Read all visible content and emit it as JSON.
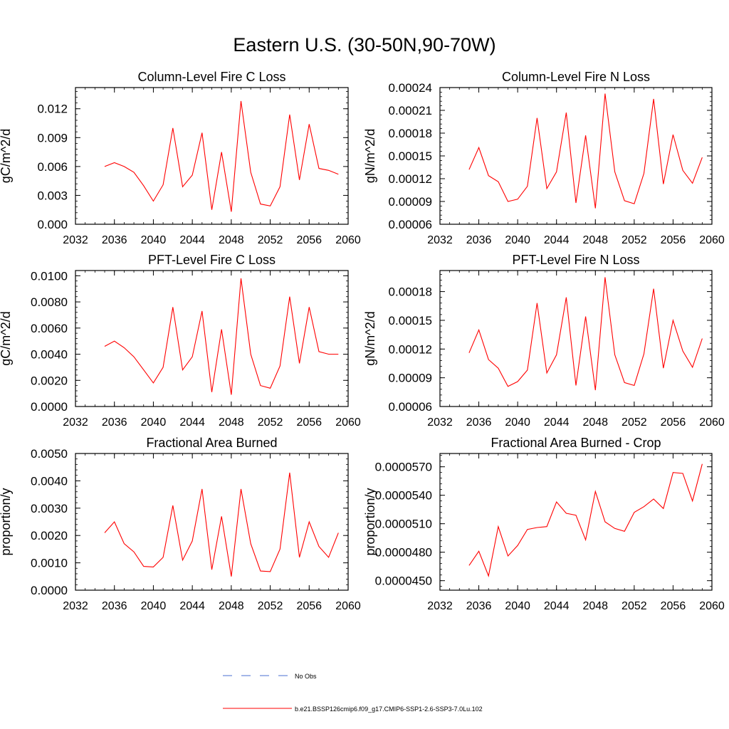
{
  "figure": {
    "title": "Eastern U.S. (30-50N,90-70W)"
  },
  "colors": {
    "model": "#ff0000",
    "obs": "#4a6fd0",
    "axis": "#000000"
  },
  "legend": {
    "placement": "bottom-center",
    "entries": [
      {
        "label": "No Obs",
        "style": "dashed",
        "color": "#4a6fd0"
      },
      {
        "label": "b.e21.BSSP126cmip6.f09_g17.CMIP6-SSP1-2.6-SSP3-7.0Lu.102",
        "style": "solid",
        "color": "#ff0000"
      }
    ]
  },
  "chart_data": [
    {
      "type": "line",
      "title": "Column-Level Fire C Loss",
      "ylabel": "gC/m^2/d",
      "xlim": [
        2032,
        2060
      ],
      "ylim": [
        0,
        0.0142
      ],
      "xticks": [
        "2032",
        "2036",
        "2040",
        "2044",
        "2048",
        "2052",
        "2056",
        "2060"
      ],
      "yticks": [
        "0.000",
        "0.003",
        "0.006",
        "0.009",
        "0.012"
      ],
      "x": [
        2035,
        2036,
        2037,
        2038,
        2039,
        2040,
        2041,
        2042,
        2043,
        2044,
        2045,
        2046,
        2047,
        2048,
        2049,
        2050,
        2051,
        2052,
        2053,
        2054,
        2055,
        2056,
        2057,
        2058,
        2059
      ],
      "series": [
        {
          "values": [
            0.006,
            0.0064,
            0.006,
            0.0054,
            0.004,
            0.0024,
            0.0041,
            0.01,
            0.0039,
            0.0051,
            0.0095,
            0.0015,
            0.0075,
            0.0013,
            0.0128,
            0.0054,
            0.0021,
            0.0019,
            0.0039,
            0.0114,
            0.0046,
            0.0104,
            0.0058,
            0.0056,
            0.0052
          ]
        }
      ]
    },
    {
      "type": "line",
      "title": "Column-Level Fire N Loss",
      "ylabel": "gN/m^2/d",
      "xlim": [
        2032,
        2060
      ],
      "ylim": [
        6e-05,
        0.00024
      ],
      "xticks": [
        "2032",
        "2036",
        "2040",
        "2044",
        "2048",
        "2052",
        "2056",
        "2060"
      ],
      "yticks": [
        "0.00006",
        "0.00009",
        "0.00012",
        "0.00015",
        "0.00018",
        "0.00021",
        "0.00024"
      ],
      "x": [
        2035,
        2036,
        2037,
        2038,
        2039,
        2040,
        2041,
        2042,
        2043,
        2044,
        2045,
        2046,
        2047,
        2048,
        2049,
        2050,
        2051,
        2052,
        2053,
        2054,
        2055,
        2056,
        2057,
        2058,
        2059
      ],
      "series": [
        {
          "values": [
            0.000132,
            0.000161,
            0.000124,
            0.000116,
            9e-05,
            9.3e-05,
            0.00011,
            0.0002,
            0.000107,
            0.000129,
            0.000207,
            8.8e-05,
            0.000177,
            8.1e-05,
            0.000232,
            0.000129,
            9.1e-05,
            8.7e-05,
            0.000127,
            0.000225,
            0.000113,
            0.000178,
            0.000131,
            0.000114,
            0.000148
          ]
        }
      ]
    },
    {
      "type": "line",
      "title": "PFT-Level Fire C Loss",
      "ylabel": "gC/m^2/d",
      "xlim": [
        2032,
        2060
      ],
      "ylim": [
        0,
        0.0104
      ],
      "xticks": [
        "2032",
        "2036",
        "2040",
        "2044",
        "2048",
        "2052",
        "2056",
        "2060"
      ],
      "yticks": [
        "0.0000",
        "0.0020",
        "0.0040",
        "0.0060",
        "0.0080",
        "0.0100"
      ],
      "x": [
        2035,
        2036,
        2037,
        2038,
        2039,
        2040,
        2041,
        2042,
        2043,
        2044,
        2045,
        2046,
        2047,
        2048,
        2049,
        2050,
        2051,
        2052,
        2053,
        2054,
        2055,
        2056,
        2057,
        2058,
        2059
      ],
      "series": [
        {
          "values": [
            0.0046,
            0.005,
            0.0045,
            0.0038,
            0.0028,
            0.0018,
            0.003,
            0.0076,
            0.0028,
            0.0038,
            0.0073,
            0.0011,
            0.0059,
            0.0009,
            0.0098,
            0.004,
            0.0016,
            0.0014,
            0.0031,
            0.0084,
            0.0033,
            0.0076,
            0.0042,
            0.004,
            0.004
          ]
        }
      ]
    },
    {
      "type": "line",
      "title": "PFT-Level Fire N Loss",
      "ylabel": "gN/m^2/d",
      "xlim": [
        2032,
        2060
      ],
      "ylim": [
        6e-05,
        0.000202
      ],
      "xticks": [
        "2032",
        "2036",
        "2040",
        "2044",
        "2048",
        "2052",
        "2056",
        "2060"
      ],
      "yticks": [
        "0.00006",
        "0.00009",
        "0.00012",
        "0.00015",
        "0.00018"
      ],
      "x": [
        2035,
        2036,
        2037,
        2038,
        2039,
        2040,
        2041,
        2042,
        2043,
        2044,
        2045,
        2046,
        2047,
        2048,
        2049,
        2050,
        2051,
        2052,
        2053,
        2054,
        2055,
        2056,
        2057,
        2058,
        2059
      ],
      "series": [
        {
          "values": [
            0.000116,
            0.00014,
            0.000109,
            0.0001,
            8.1e-05,
            8.6e-05,
            9.8e-05,
            0.000168,
            9.5e-05,
            0.000114,
            0.000174,
            8.2e-05,
            0.000154,
            7.7e-05,
            0.000195,
            0.000114,
            8.5e-05,
            8.2e-05,
            0.000115,
            0.000183,
            0.0001,
            0.00015,
            0.000118,
            0.000101,
            0.000131
          ]
        }
      ]
    },
    {
      "type": "line",
      "title": "Fractional Area Burned",
      "ylabel": "proportion/y",
      "xlim": [
        2032,
        2060
      ],
      "ylim": [
        0,
        0.005
      ],
      "xticks": [
        "2032",
        "2036",
        "2040",
        "2044",
        "2048",
        "2052",
        "2056",
        "2060"
      ],
      "yticks": [
        "0.0000",
        "0.0010",
        "0.0020",
        "0.0030",
        "0.0040",
        "0.0050"
      ],
      "x": [
        2035,
        2036,
        2037,
        2038,
        2039,
        2040,
        2041,
        2042,
        2043,
        2044,
        2045,
        2046,
        2047,
        2048,
        2049,
        2050,
        2051,
        2052,
        2053,
        2054,
        2055,
        2056,
        2057,
        2058,
        2059
      ],
      "series": [
        {
          "values": [
            0.0021,
            0.0025,
            0.0017,
            0.0014,
            0.00087,
            0.00085,
            0.0012,
            0.0031,
            0.0011,
            0.0018,
            0.0037,
            0.00075,
            0.0027,
            0.0005,
            0.0037,
            0.0017,
            0.0007,
            0.00068,
            0.0015,
            0.0043,
            0.0012,
            0.0025,
            0.0016,
            0.0012,
            0.0021
          ]
        }
      ]
    },
    {
      "type": "line",
      "title": "Fractional Area Burned - Crop",
      "ylabel": "proportion/y",
      "xlim": [
        2032,
        2060
      ],
      "ylim": [
        4.4e-05,
        5.84e-05
      ],
      "xticks": [
        "2032",
        "2036",
        "2040",
        "2044",
        "2048",
        "2052",
        "2056",
        "2060"
      ],
      "yticks": [
        "0.0000450",
        "0.0000480",
        "0.0000510",
        "0.0000540",
        "0.0000570"
      ],
      "x": [
        2035,
        2036,
        2037,
        2038,
        2039,
        2040,
        2041,
        2042,
        2043,
        2044,
        2045,
        2046,
        2047,
        2048,
        2049,
        2050,
        2051,
        2052,
        2053,
        2054,
        2055,
        2056,
        2057,
        2058,
        2059
      ],
      "series": [
        {
          "values": [
            4.66e-05,
            4.81e-05,
            4.55e-05,
            5.07e-05,
            4.76e-05,
            4.87e-05,
            5.04e-05,
            5.06e-05,
            5.07e-05,
            5.33e-05,
            5.21e-05,
            5.19e-05,
            4.93e-05,
            5.44e-05,
            5.12e-05,
            5.05e-05,
            5.02e-05,
            5.22e-05,
            5.28e-05,
            5.36e-05,
            5.26e-05,
            5.64e-05,
            5.63e-05,
            5.34e-05,
            5.73e-05
          ]
        }
      ]
    }
  ]
}
